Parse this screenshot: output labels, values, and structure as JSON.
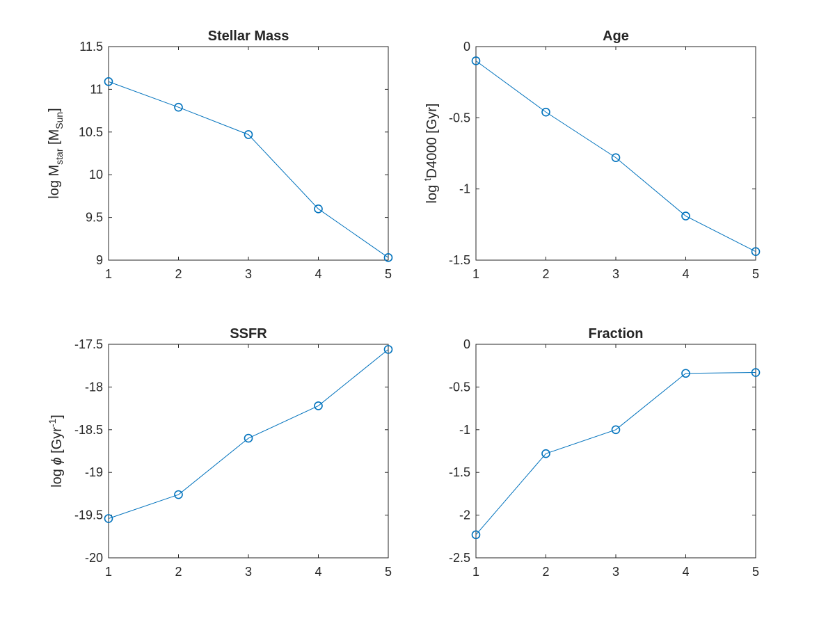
{
  "chart_data": [
    {
      "type": "line",
      "title": "Stellar Mass",
      "ylabel": {
        "pre": "log M",
        "sub": "star",
        "mid": " [M",
        "sub2": "Sun",
        "post": "]"
      },
      "x": [
        1,
        2,
        3,
        4,
        5
      ],
      "y": [
        11.09,
        10.79,
        10.47,
        9.6,
        9.03
      ],
      "xlim": [
        1,
        5
      ],
      "ylim": [
        9,
        11.5
      ],
      "xticks": [
        1,
        2,
        3,
        4,
        5
      ],
      "yticks": [
        9,
        9.5,
        10,
        10.5,
        11,
        11.5
      ],
      "ytick_labels": [
        "9",
        "9.5",
        "10",
        "10.5",
        "11",
        "11.5"
      ],
      "marker": "circle",
      "color": "#0072BD",
      "grid": false
    },
    {
      "type": "line",
      "title": "Age",
      "ylabel": {
        "pre": "log ",
        "sup": "t",
        "post": "D4000 [Gyr]"
      },
      "x": [
        1,
        2,
        3,
        4,
        5
      ],
      "y": [
        -0.1,
        -0.46,
        -0.78,
        -1.19,
        -1.44
      ],
      "xlim": [
        1,
        5
      ],
      "ylim": [
        -1.5,
        0
      ],
      "xticks": [
        1,
        2,
        3,
        4,
        5
      ],
      "yticks": [
        -1.5,
        -1,
        -0.5,
        0
      ],
      "ytick_labels": [
        "-1.5",
        "-1",
        "-0.5",
        "0"
      ],
      "marker": "circle",
      "color": "#0072BD",
      "grid": false
    },
    {
      "type": "line",
      "title": "SSFR",
      "ylabel": {
        "pre": "log ",
        "ital": "ϕ",
        "mid": " [Gyr",
        "sup": "-1",
        "post": "]"
      },
      "x": [
        1,
        2,
        3,
        4,
        5
      ],
      "y": [
        -19.54,
        -19.26,
        -18.6,
        -18.22,
        -17.56
      ],
      "xlim": [
        1,
        5
      ],
      "ylim": [
        -20,
        -17.5
      ],
      "xticks": [
        1,
        2,
        3,
        4,
        5
      ],
      "yticks": [
        -20,
        -19.5,
        -19,
        -18.5,
        -18,
        -17.5
      ],
      "ytick_labels": [
        "-20",
        "-19.5",
        "-19",
        "-18.5",
        "-18",
        "-17.5"
      ],
      "marker": "circle",
      "color": "#0072BD",
      "grid": false
    },
    {
      "type": "line",
      "title": "Fraction",
      "ylabel": null,
      "x": [
        1,
        2,
        3,
        4,
        5
      ],
      "y": [
        -2.23,
        -1.28,
        -1.0,
        -0.34,
        -0.33
      ],
      "xlim": [
        1,
        5
      ],
      "ylim": [
        -2.5,
        0
      ],
      "xticks": [
        1,
        2,
        3,
        4,
        5
      ],
      "yticks": [
        -2.5,
        -2,
        -1.5,
        -1,
        -0.5,
        0
      ],
      "ytick_labels": [
        "-2.5",
        "-2",
        "-1.5",
        "-1",
        "-0.5",
        "0"
      ],
      "marker": "circle",
      "color": "#0072BD",
      "grid": false
    }
  ]
}
